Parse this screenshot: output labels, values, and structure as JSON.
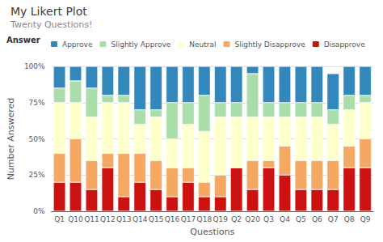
{
  "chart_data": {
    "type": "bar",
    "title": "My Likert Plot",
    "subtitle": "Twenty Questions!",
    "xlabel": "Questions",
    "ylabel": "Number Answered",
    "legend_title": "Answer",
    "categories": [
      "Q1",
      "Q10",
      "Q11",
      "Q12",
      "Q13",
      "Q14",
      "Q15",
      "Q16",
      "Q17",
      "Q18",
      "Q19",
      "Q2",
      "Q20",
      "Q3",
      "Q4",
      "Q5",
      "Q6",
      "Q7",
      "Q8",
      "Q9"
    ],
    "series": [
      {
        "name": "Disapprove",
        "color": "#cc1111",
        "values": [
          20,
          20,
          15,
          30,
          10,
          20,
          15,
          10,
          20,
          10,
          10,
          30,
          15,
          30,
          25,
          15,
          15,
          15,
          30,
          30
        ]
      },
      {
        "name": "Slightly Disapprove",
        "color": "#f5a862",
        "values": [
          20,
          30,
          20,
          10,
          30,
          20,
          20,
          20,
          10,
          10,
          15,
          0,
          20,
          5,
          20,
          20,
          20,
          20,
          15,
          20
        ]
      },
      {
        "name": "Neutral",
        "color": "#ffffcc",
        "values": [
          35,
          25,
          30,
          35,
          35,
          20,
          30,
          20,
          30,
          35,
          40,
          35,
          30,
          30,
          20,
          30,
          30,
          25,
          25,
          25
        ]
      },
      {
        "name": "Slightly Approve",
        "color": "#aaddaa",
        "values": [
          10,
          15,
          20,
          5,
          5,
          10,
          5,
          25,
          15,
          25,
          10,
          10,
          30,
          10,
          10,
          10,
          10,
          10,
          10,
          5
        ]
      },
      {
        "name": "Approve",
        "color": "#3388bb",
        "values": [
          15,
          10,
          15,
          20,
          20,
          30,
          30,
          25,
          25,
          20,
          25,
          25,
          5,
          25,
          25,
          25,
          25,
          25,
          20,
          20
        ]
      }
    ],
    "stacked": true,
    "ylim": [
      0,
      100
    ],
    "yticks": [
      {
        "value": 0,
        "label": "0%"
      },
      {
        "value": 25,
        "label": "25%"
      },
      {
        "value": 50,
        "label": "50%"
      },
      {
        "value": 75,
        "label": "75%"
      },
      {
        "value": 100,
        "label": "100%"
      }
    ],
    "grid": true,
    "legend": "upper left"
  }
}
